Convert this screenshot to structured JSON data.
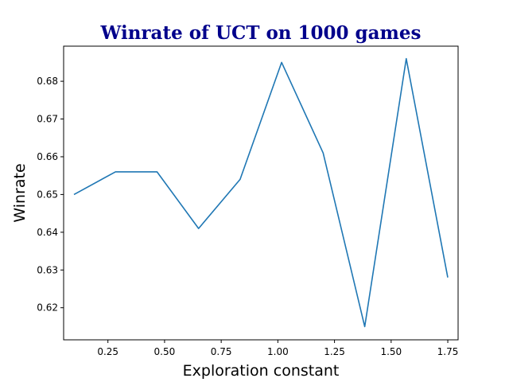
{
  "chart_data": {
    "type": "line",
    "title": "Winrate of UCT on 1000 games",
    "xlabel": "Exploration constant",
    "ylabel": "Winrate",
    "xlim": [
      0.0545,
      1.7955
    ],
    "ylim": [
      0.6115,
      0.6893
    ],
    "xticks": [
      "0.25",
      "0.50",
      "0.75",
      "1.00",
      "1.25",
      "1.50",
      "1.75"
    ],
    "xtick_values": [
      0.25,
      0.5,
      0.75,
      1.0,
      1.25,
      1.5,
      1.75
    ],
    "yticks": [
      "0.62",
      "0.63",
      "0.64",
      "0.65",
      "0.66",
      "0.67",
      "0.68"
    ],
    "ytick_values": [
      0.62,
      0.63,
      0.64,
      0.65,
      0.66,
      0.67,
      0.68
    ],
    "grid": false,
    "colors": {
      "line": "#1f77b4",
      "title": "#00008b"
    },
    "series": [
      {
        "x": [
          0.1,
          0.2833,
          0.4667,
          0.65,
          0.8333,
          1.0167,
          1.2,
          1.3833,
          1.5667,
          1.75
        ],
        "values": [
          0.65,
          0.656,
          0.656,
          0.641,
          0.654,
          0.685,
          0.661,
          0.615,
          0.686,
          0.628
        ]
      }
    ]
  }
}
